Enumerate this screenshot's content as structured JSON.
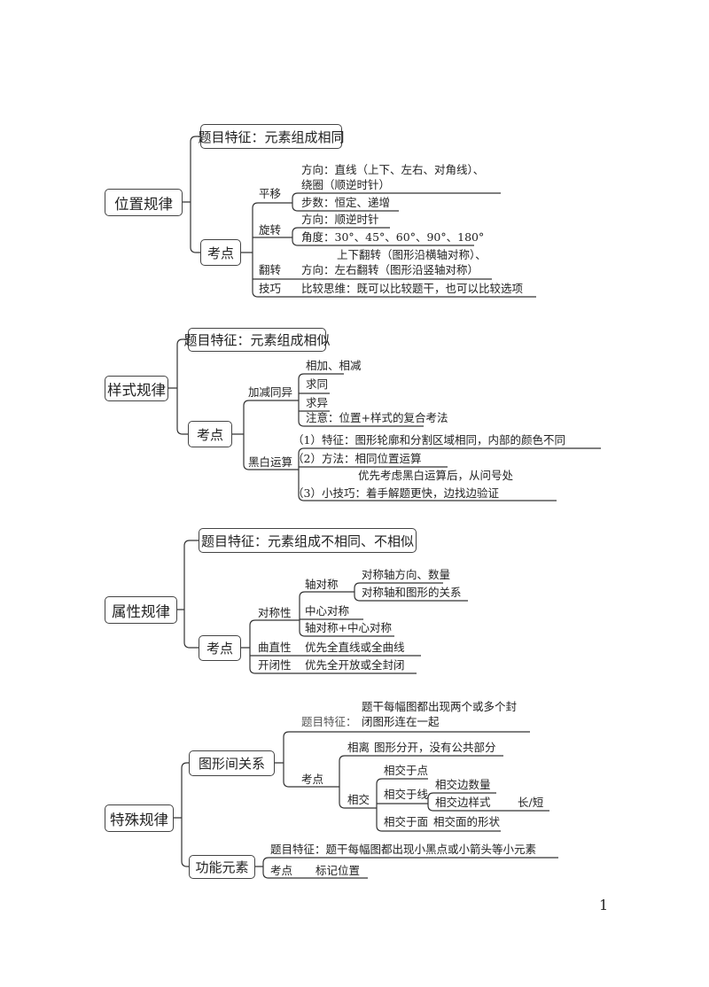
{
  "sections": [
    {
      "root": "位置规律",
      "feature": "题目特征：元素组成相同",
      "kaodian": "考点",
      "branches": {
        "pingyi": {
          "label": "平移",
          "items": [
            "方向：直线（上下、左右、对角线）、",
            "绕圈（顺逆时针）",
            "步数：恒定、递增"
          ]
        },
        "xuanzhuan": {
          "label": "旋转",
          "items": [
            "方向：顺逆时针",
            "角度：30°、45°、60°、90°、180°"
          ]
        },
        "fanzhuan": {
          "label": "翻转",
          "items": [
            "上下翻转（图形沿横轴对称）、",
            "方向：左右翻转（图形沿竖轴对称）"
          ]
        },
        "jiqiao": {
          "label": "技巧",
          "items": [
            "比较思维：既可以比较题干，也可以比较选项"
          ]
        }
      }
    },
    {
      "root": "样式规律",
      "feature": "题目特征：元素组成相似",
      "kaodian": "考点",
      "branches": {
        "jiajian": {
          "label": "加减同异",
          "items": [
            "相加、相减",
            "求同",
            "求异",
            "注意：位置+样式的复合考法"
          ]
        },
        "heibai": {
          "label": "黑白运算",
          "items": [
            "（1）特征：图形轮廓和分割区域相同，内部的颜色不同",
            "（2）方法：相同位置运算",
            "优先考虑黑白运算后，从问号处",
            "（3）小技巧：着手解题更快，边找边验证"
          ]
        }
      }
    },
    {
      "root": "属性规律",
      "feature": "题目特征：元素组成不相同、不相似",
      "kaodian": "考点",
      "branches": {
        "duichen": {
          "label": "对称性",
          "items": [
            "轴对称",
            "中心对称",
            "轴对称+中心对称"
          ],
          "zhou": [
            "对称轴方向、数量",
            "对称轴和图形的关系"
          ]
        },
        "quzhi": {
          "label": "曲直性",
          "items": [
            "优先全直线或全曲线"
          ]
        },
        "kaibi": {
          "label": "开闭性",
          "items": [
            "优先全开放或全封闭"
          ]
        }
      }
    },
    {
      "root": "特殊规律",
      "tuxing": {
        "label": "图形间关系",
        "feature_label": "题目特征：",
        "feature_line1": "题干每幅图都出现两个或多个封",
        "feature_line2": "闭图形连在一起",
        "kaodian": "考点",
        "xiangli": {
          "label": "相离",
          "text": "图形分开，没有公共部分"
        },
        "xiangjiao": {
          "label": "相交",
          "dian": "相交于点",
          "xian": "相交于线",
          "xian_items": [
            "相交边数量",
            "相交边样式"
          ],
          "xian_style_value": "长/短",
          "mian": "相交于面",
          "mian_text": "相交面的形状"
        }
      },
      "gongneng": {
        "label": "功能元素",
        "feature": "题目特征：题干每幅图都出现小黑点或小箭头等小元素",
        "kaodian": "考点",
        "kaodian_text": "标记位置"
      }
    }
  ],
  "page_number": "1"
}
